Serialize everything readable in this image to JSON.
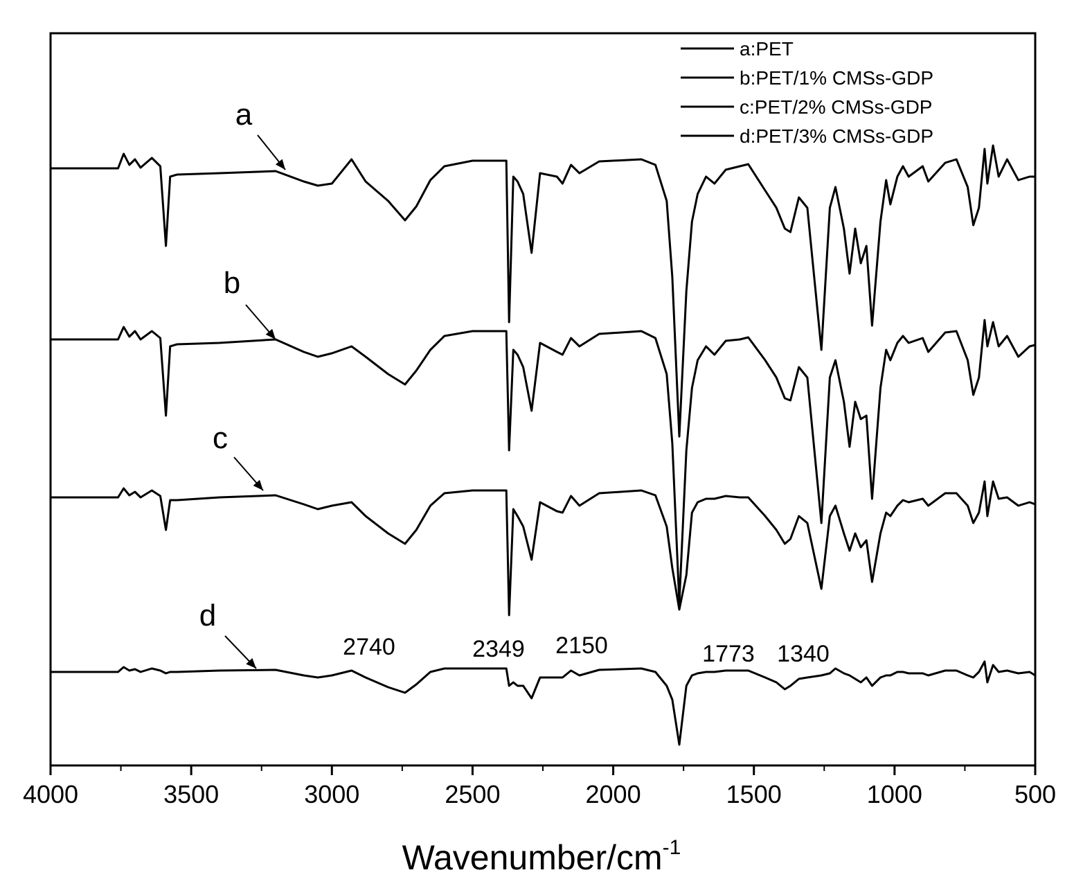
{
  "chart_data": {
    "type": "line",
    "x_label": "Wavenumber/cm",
    "x_label_sup": "-1",
    "xlim": [
      4000,
      500
    ],
    "xticks": [
      4000,
      3500,
      3000,
      2500,
      2000,
      1500,
      1000,
      500
    ],
    "ylim": [
      0,
      1057
    ],
    "legend": "upper right",
    "x": [
      4000,
      3760,
      3740,
      3720,
      3700,
      3680,
      3640,
      3610,
      3590,
      3575,
      3550,
      3400,
      3200,
      3100,
      3050,
      3000,
      2930,
      2880,
      2800,
      2740,
      2700,
      2650,
      2600,
      2500,
      2380,
      2370,
      2355,
      2340,
      2320,
      2290,
      2260,
      2200,
      2180,
      2150,
      2120,
      2050,
      1900,
      1850,
      1810,
      1790,
      1765,
      1740,
      1720,
      1700,
      1670,
      1640,
      1600,
      1550,
      1520,
      1460,
      1420,
      1390,
      1370,
      1340,
      1310,
      1260,
      1230,
      1210,
      1180,
      1160,
      1140,
      1120,
      1100,
      1080,
      1050,
      1030,
      1015,
      990,
      970,
      950,
      900,
      880,
      820,
      780,
      740,
      720,
      700,
      680,
      670,
      650,
      630,
      600,
      560,
      520,
      500
    ],
    "series": [
      {
        "name": "a:PET",
        "color": "#000000",
        "values": [
          862,
          862,
          883,
          867,
          875,
          863,
          877,
          865,
          750,
          850,
          853,
          855,
          858,
          843,
          837,
          840,
          875,
          843,
          815,
          787,
          807,
          845,
          865,
          873,
          873,
          640,
          850,
          843,
          825,
          740,
          855,
          850,
          840,
          867,
          855,
          872,
          875,
          867,
          815,
          705,
          475,
          685,
          785,
          825,
          850,
          840,
          860,
          865,
          868,
          830,
          805,
          775,
          770,
          820,
          805,
          600,
          805,
          835,
          775,
          710,
          775,
          725,
          750,
          635,
          785,
          845,
          810,
          850,
          865,
          850,
          865,
          843,
          870,
          875,
          835,
          780,
          805,
          890,
          840,
          895,
          850,
          875,
          845,
          850,
          850
        ]
      },
      {
        "name": "b:PET/1% CMSs-GDP",
        "color": "#000000",
        "values": [
          615,
          615,
          633,
          619,
          627,
          615,
          627,
          617,
          505,
          605,
          608,
          610,
          615,
          597,
          590,
          595,
          605,
          590,
          565,
          550,
          570,
          600,
          620,
          627,
          627,
          455,
          600,
          593,
          575,
          512,
          610,
          597,
          593,
          617,
          605,
          623,
          627,
          617,
          565,
          465,
          235,
          455,
          545,
          585,
          605,
          593,
          613,
          615,
          618,
          585,
          560,
          530,
          527,
          575,
          560,
          350,
          560,
          585,
          525,
          460,
          525,
          500,
          505,
          385,
          545,
          600,
          585,
          610,
          620,
          610,
          617,
          597,
          625,
          627,
          585,
          535,
          560,
          643,
          605,
          640,
          605,
          620,
          590,
          605,
          607
        ]
      },
      {
        "name": "c:PET/2% CMSs-GDP",
        "color": "#000000",
        "values": [
          387,
          387,
          400,
          390,
          395,
          387,
          397,
          389,
          340,
          383,
          383,
          387,
          390,
          377,
          370,
          375,
          380,
          360,
          335,
          320,
          340,
          375,
          393,
          397,
          397,
          217,
          370,
          360,
          345,
          297,
          380,
          367,
          365,
          389,
          375,
          393,
          397,
          390,
          345,
          285,
          225,
          275,
          365,
          380,
          385,
          385,
          389,
          387,
          387,
          360,
          340,
          320,
          327,
          360,
          350,
          255,
          360,
          375,
          335,
          310,
          335,
          315,
          325,
          265,
          335,
          365,
          360,
          375,
          383,
          380,
          385,
          375,
          393,
          393,
          375,
          350,
          365,
          410,
          360,
          410,
          385,
          387,
          375,
          380,
          377
        ]
      },
      {
        "name": "d:PET/3% CMSs-GDP",
        "color": "#000000",
        "values": [
          135,
          135,
          142,
          137,
          139,
          135,
          140,
          137,
          133,
          135,
          135,
          137,
          138,
          130,
          127,
          130,
          137,
          127,
          113,
          105,
          117,
          135,
          140,
          140,
          140,
          115,
          120,
          115,
          115,
          97,
          127,
          127,
          127,
          137,
          130,
          138,
          140,
          135,
          115,
          95,
          30,
          115,
          130,
          133,
          135,
          135,
          137,
          137,
          137,
          127,
          120,
          110,
          115,
          125,
          127,
          130,
          133,
          140,
          133,
          130,
          125,
          120,
          127,
          115,
          127,
          130,
          130,
          135,
          135,
          133,
          133,
          130,
          137,
          137,
          130,
          127,
          135,
          150,
          120,
          145,
          135,
          137,
          133,
          135,
          130
        ]
      }
    ],
    "annotations": [
      "a",
      "b",
      "c",
      "d"
    ],
    "peak_labels": [
      2740,
      2349,
      2150,
      1773,
      1340
    ]
  }
}
